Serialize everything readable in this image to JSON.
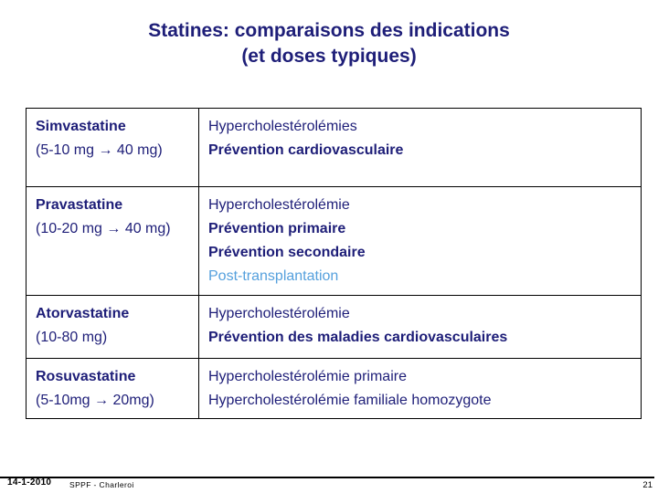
{
  "slide": {
    "title_line1": "Statines: comparaisons des indications",
    "title_line2": "(et doses typiques)"
  },
  "table": {
    "rows": [
      {
        "drug": "Simvastatine",
        "dose": "(5-10 mg → 40 mg)",
        "indications": [
          {
            "text": "Hypercholestérolémies",
            "style": "normal"
          },
          {
            "text": "Prévention cardiovasculaire",
            "style": "bold"
          }
        ]
      },
      {
        "drug": "Pravastatine",
        "dose": "(10-20 mg → 40 mg)",
        "indications": [
          {
            "text": "Hypercholestérolémie",
            "style": "normal"
          },
          {
            "text": "Prévention primaire",
            "style": "bold"
          },
          {
            "text": "Prévention secondaire",
            "style": "bold"
          },
          {
            "text": "Post-transplantation",
            "style": "lightblue"
          }
        ]
      },
      {
        "drug": "Atorvastatine",
        "dose": "(10-80 mg)",
        "indications": [
          {
            "text": "Hypercholestérolémie",
            "style": "normal"
          },
          {
            "text": "Prévention des maladies cardiovasculaires",
            "style": "bold"
          }
        ]
      },
      {
        "drug": "Rosuvastatine",
        "dose": "(5-10mg → 20mg)",
        "indications": [
          {
            "text": "Hypercholestérolémie primaire",
            "style": "normal"
          },
          {
            "text": "Hypercholestérolémie familiale homozygote",
            "style": "normal"
          }
        ]
      }
    ]
  },
  "footer": {
    "date": "14-1-2010",
    "source": "SPPF - Charleroi",
    "page_number": "21"
  },
  "colors": {
    "text_navy": "#1e1e78",
    "highlight_blue": "#55a0dd",
    "border_black": "#000000",
    "background": "#ffffff"
  }
}
